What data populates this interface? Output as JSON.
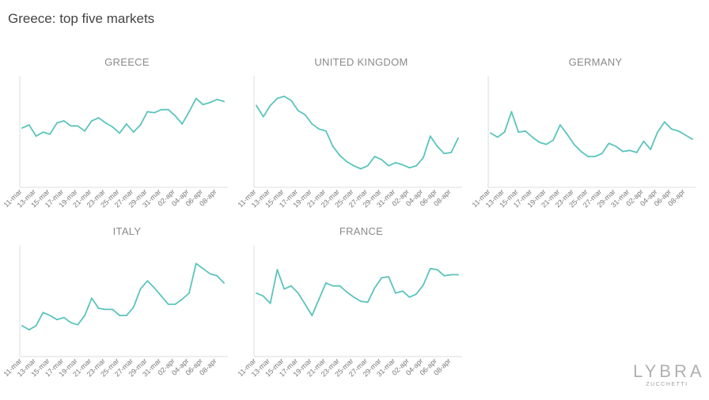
{
  "page": {
    "title": "Greece: top five markets"
  },
  "colors": {
    "line": "#5bc4bd",
    "axis": "#dddddd",
    "text": "#8a8a8a"
  },
  "logo": {
    "main": "LYBRA",
    "sub": "ZUCCHETTI"
  },
  "x_ticks": [
    "11-mar",
    "13-mar",
    "15-mar",
    "17-mar",
    "19-mar",
    "21-mar",
    "23-mar",
    "25-mar",
    "27-mar",
    "29-mar",
    "31-mar",
    "02-apr",
    "04-apr",
    "06-apr",
    "08-apr"
  ],
  "chart_data": [
    {
      "type": "line",
      "title": "GREECE",
      "x": [
        "11-mar",
        "12-mar",
        "13-mar",
        "14-mar",
        "15-mar",
        "16-mar",
        "17-mar",
        "18-mar",
        "19-mar",
        "20-mar",
        "21-mar",
        "22-mar",
        "23-mar",
        "24-mar",
        "25-mar",
        "26-mar",
        "27-mar",
        "28-mar",
        "29-mar",
        "30-mar",
        "31-mar",
        "01-apr",
        "02-apr",
        "03-apr",
        "04-apr",
        "05-apr",
        "06-apr",
        "07-apr",
        "08-apr",
        "09-apr"
      ],
      "values": [
        52,
        55,
        44,
        48,
        46,
        57,
        59,
        54,
        54,
        49,
        59,
        62,
        57,
        53,
        47,
        56,
        48,
        55,
        68,
        67,
        70,
        70,
        64,
        56,
        68,
        81,
        75,
        77,
        80,
        78
      ],
      "ylim": [
        0,
        100
      ],
      "grid": false,
      "legend": "none"
    },
    {
      "type": "line",
      "title": "UNITED KINGDOM",
      "x": [
        "11-mar",
        "12-mar",
        "13-mar",
        "14-mar",
        "15-mar",
        "16-mar",
        "17-mar",
        "18-mar",
        "19-mar",
        "20-mar",
        "21-mar",
        "22-mar",
        "23-mar",
        "24-mar",
        "25-mar",
        "26-mar",
        "27-mar",
        "28-mar",
        "29-mar",
        "30-mar",
        "31-mar",
        "01-apr",
        "02-apr",
        "03-apr",
        "04-apr",
        "05-apr",
        "06-apr",
        "07-apr",
        "08-apr",
        "09-apr"
      ],
      "values": [
        74,
        63,
        74,
        81,
        83,
        79,
        69,
        65,
        56,
        51,
        49,
        34,
        25,
        19,
        15,
        12,
        15,
        24,
        21,
        15,
        18,
        16,
        13,
        15,
        23,
        44,
        34,
        27,
        28,
        42
      ],
      "ylim": [
        0,
        100
      ],
      "grid": false,
      "legend": "none"
    },
    {
      "type": "line",
      "title": "GERMANY",
      "x": [
        "11-mar",
        "12-mar",
        "13-mar",
        "14-mar",
        "15-mar",
        "16-mar",
        "17-mar",
        "18-mar",
        "19-mar",
        "20-mar",
        "21-mar",
        "22-mar",
        "23-mar",
        "24-mar",
        "25-mar",
        "26-mar",
        "27-mar",
        "28-mar",
        "29-mar",
        "30-mar",
        "31-mar",
        "01-apr",
        "02-apr",
        "03-apr",
        "04-apr",
        "05-apr",
        "06-apr",
        "07-apr",
        "08-apr",
        "09-apr"
      ],
      "values": [
        47,
        43,
        48,
        68,
        48,
        49,
        43,
        38,
        36,
        40,
        55,
        46,
        36,
        29,
        24,
        24,
        27,
        37,
        34,
        29,
        30,
        28,
        39,
        31,
        48,
        58,
        51,
        49,
        45,
        41
      ],
      "ylim": [
        0,
        100
      ],
      "grid": false,
      "legend": "none"
    },
    {
      "type": "line",
      "title": "ITALY",
      "x": [
        "11-mar",
        "12-mar",
        "13-mar",
        "14-mar",
        "15-mar",
        "16-mar",
        "17-mar",
        "18-mar",
        "19-mar",
        "20-mar",
        "21-mar",
        "22-mar",
        "23-mar",
        "24-mar",
        "25-mar",
        "26-mar",
        "27-mar",
        "28-mar",
        "29-mar",
        "30-mar",
        "31-mar",
        "01-apr",
        "02-apr",
        "03-apr",
        "04-apr",
        "05-apr",
        "06-apr",
        "07-apr",
        "08-apr",
        "09-apr"
      ],
      "values": [
        24,
        20,
        24,
        37,
        34,
        30,
        32,
        27,
        25,
        34,
        51,
        41,
        40,
        40,
        34,
        34,
        42,
        60,
        68,
        61,
        53,
        45,
        45,
        50,
        56,
        85,
        80,
        75,
        73,
        66
      ],
      "ylim": [
        0,
        100
      ],
      "grid": false,
      "legend": "none"
    },
    {
      "type": "line",
      "title": "FRANCE",
      "x": [
        "11-mar",
        "12-mar",
        "13-mar",
        "14-mar",
        "15-mar",
        "16-mar",
        "17-mar",
        "18-mar",
        "19-mar",
        "20-mar",
        "21-mar",
        "22-mar",
        "23-mar",
        "24-mar",
        "25-mar",
        "26-mar",
        "27-mar",
        "28-mar",
        "29-mar",
        "30-mar",
        "31-mar",
        "01-apr",
        "02-apr",
        "03-apr",
        "04-apr",
        "05-apr",
        "06-apr",
        "07-apr",
        "08-apr",
        "09-apr"
      ],
      "values": [
        56,
        53,
        46,
        79,
        60,
        63,
        56,
        45,
        34,
        50,
        66,
        63,
        63,
        57,
        52,
        48,
        47,
        61,
        71,
        72,
        56,
        58,
        52,
        55,
        64,
        80,
        79,
        73,
        74,
        74
      ],
      "ylim": [
        0,
        100
      ],
      "grid": false,
      "legend": "none"
    }
  ]
}
